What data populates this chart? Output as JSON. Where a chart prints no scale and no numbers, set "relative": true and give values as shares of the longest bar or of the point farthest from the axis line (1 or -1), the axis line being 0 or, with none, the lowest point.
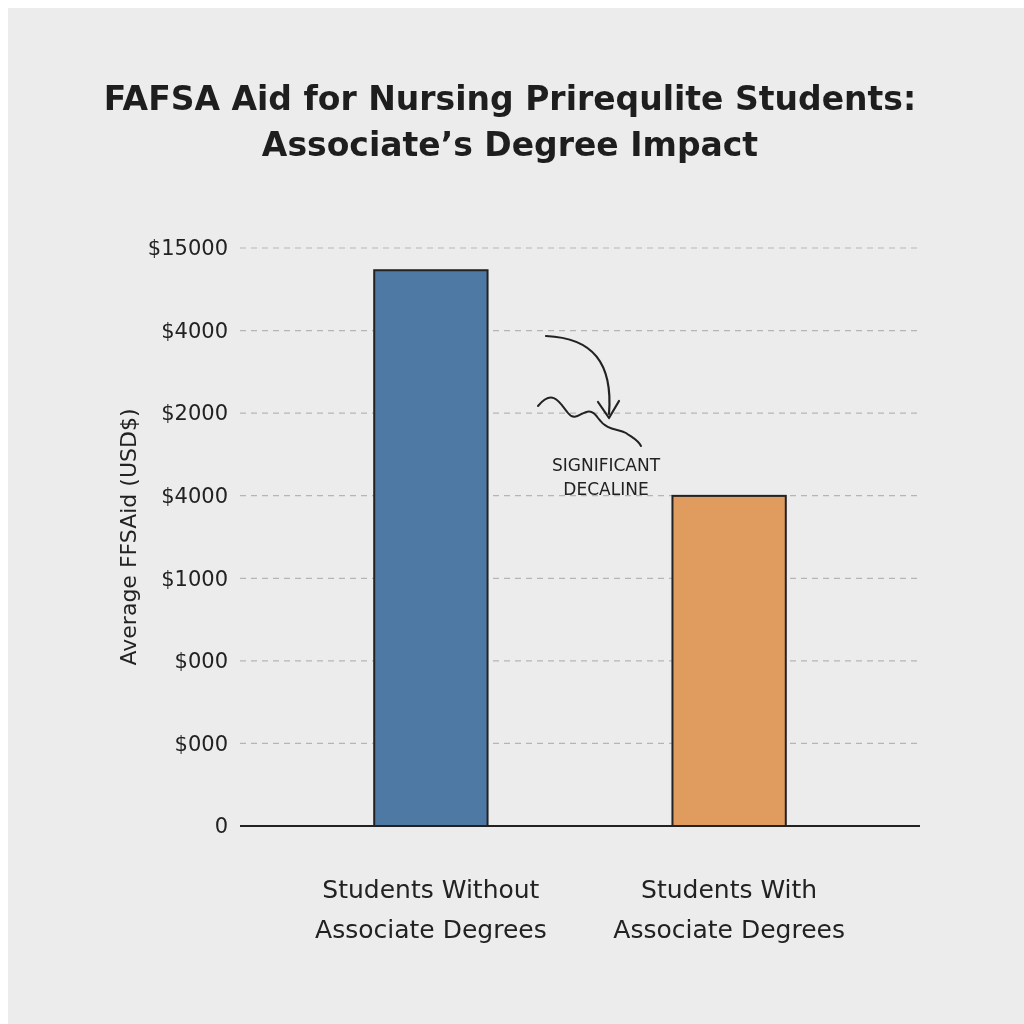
{
  "chart_data": {
    "type": "bar",
    "title": "FAFSA Aid for Nursing Prirequlite Students: Associate’s Degree Impact",
    "ylabel": "Average FFSAid (USD$)",
    "categories": [
      "Students Without Associate Degrees",
      "Students With Associate Degrees"
    ],
    "values": [
      1,
      0.594
    ],
    "colors": [
      "#4e79a5",
      "#e09b5e"
    ],
    "relative": true,
    "grid": "y",
    "annotations": [
      "SIGNIFICANT DECALINE",
      "$15000",
      "$4000",
      "$2000",
      "$4000",
      "$1000",
      "$000",
      "$000",
      "0"
    ]
  }
}
